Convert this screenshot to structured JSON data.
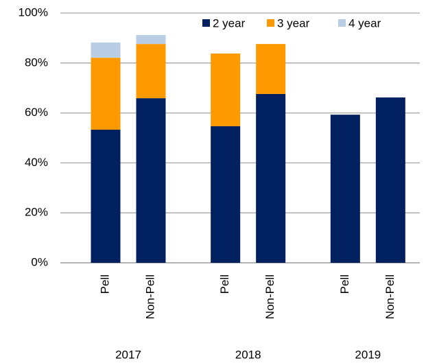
{
  "chart_data": {
    "type": "stacked_bar",
    "categories": [
      "Pell",
      "Non-Pell",
      "Pell",
      "Non-Pell",
      "Pell",
      "Non-Pell"
    ],
    "groups": [
      "2017",
      "2018",
      "2019"
    ],
    "series": [
      {
        "name": "2 year",
        "color": "#002060",
        "values": [
          53.3,
          65.9,
          54.7,
          67.6,
          59.3,
          66.2
        ]
      },
      {
        "name": "3 year",
        "color": "#ff9900",
        "values": [
          28.8,
          21.7,
          29.1,
          20.0,
          null,
          null
        ]
      },
      {
        "name": "4 year",
        "color": "#b9cde5",
        "values": [
          6.1,
          3.6,
          null,
          null,
          null,
          null
        ]
      }
    ],
    "ylim": [
      0,
      100
    ],
    "yticks": [
      {
        "value": 0,
        "label": "0%"
      },
      {
        "value": 20,
        "label": "20%"
      },
      {
        "value": 40,
        "label": "40%"
      },
      {
        "value": 60,
        "label": "60%"
      },
      {
        "value": 80,
        "label": "80%"
      },
      {
        "value": 100,
        "label": "100%"
      }
    ],
    "grid": true,
    "legend": "upper right"
  }
}
